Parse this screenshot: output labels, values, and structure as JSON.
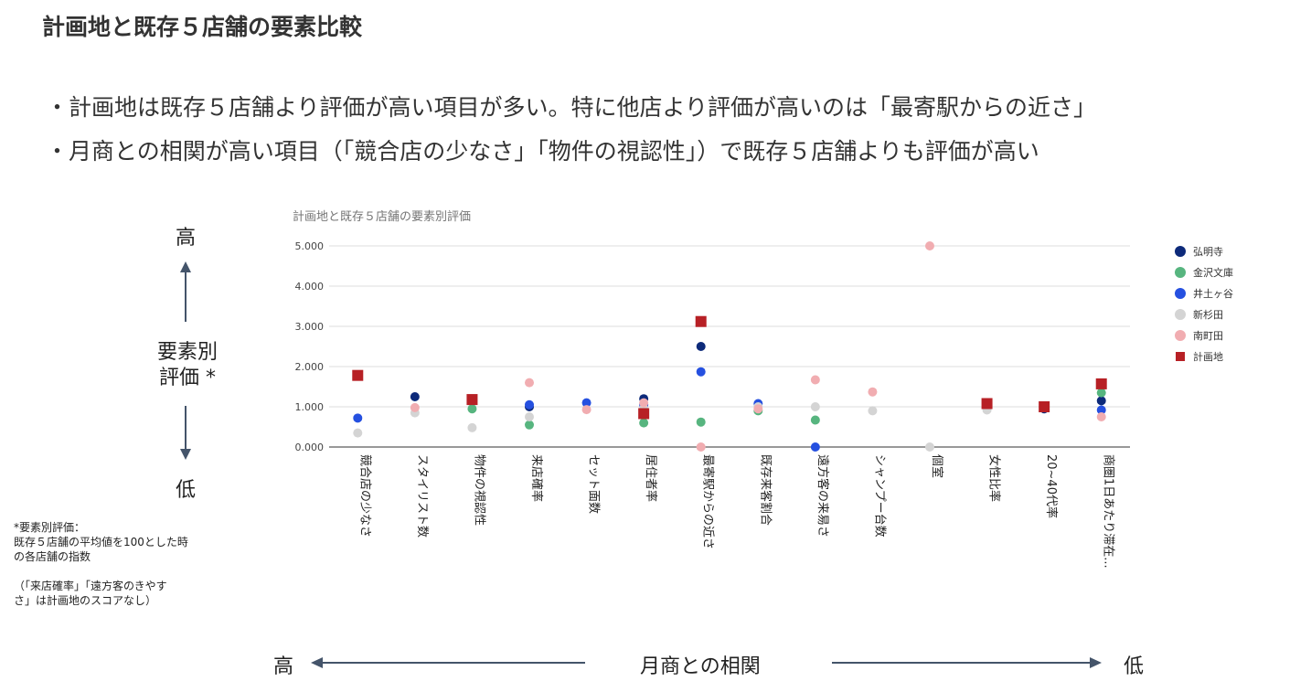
{
  "title": "計画地と既存５店舗の要素比較",
  "bullets": [
    "・計画地は既存５店舗より評価が高い項目が多い。特に他店より評価が高いのは「最寄駅からの近さ」",
    "・月商との相関が高い項目（「競合店の少なさ」「物件の視認性」）で既存５店舗よりも評価が高い"
  ],
  "y_annotation": {
    "high": "高",
    "label_line1": "要素別",
    "label_line2": "評価 *",
    "low": "低"
  },
  "note": {
    "line1": "*要素別評価：",
    "line2": "既存５店舗の平均値を100とした時",
    "line3": "の各店舗の指数",
    "line4": "（「来店確率」「遠方客のきやす",
    "line5": "さ」は計画地のスコアなし）"
  },
  "bottom_axis": {
    "high": "高",
    "label": "月商との相関",
    "low": "低"
  },
  "chart_data": {
    "type": "scatter",
    "title": "計画地と既存５店舗の要素別評価",
    "categories": [
      "競合店の少なさ",
      "スタイリスト数",
      "物件の視認性",
      "来店確率",
      "セット面数",
      "居住者率",
      "最寄駅からの近さ",
      "既存来客割合",
      "遠方客の来易さ",
      "シャンプー台数",
      "個室",
      "女性比率",
      "20~40代率",
      "商圏1日あたり滞在..."
    ],
    "y_ticks": [
      "0.000",
      "1.000",
      "2.000",
      "3.000",
      "4.000",
      "5.000"
    ],
    "ylim": [
      0,
      5
    ],
    "grid": true,
    "legend_position": "right",
    "series": [
      {
        "name": "弘明寺",
        "color": "#0d2a7a",
        "marker": "circle",
        "values": [
          null,
          1.25,
          null,
          1.0,
          null,
          1.2,
          2.5,
          null,
          null,
          null,
          null,
          null,
          0.95,
          1.15
        ]
      },
      {
        "name": "金沢文庫",
        "color": "#57b57f",
        "marker": "circle",
        "values": [
          null,
          null,
          0.95,
          0.55,
          null,
          0.6,
          0.62,
          0.9,
          0.67,
          null,
          null,
          null,
          null,
          1.35
        ]
      },
      {
        "name": "井土ヶ谷",
        "color": "#2550e0",
        "marker": "circle",
        "values": [
          0.72,
          null,
          null,
          1.05,
          1.1,
          1.05,
          1.87,
          1.08,
          0.0,
          null,
          null,
          null,
          null,
          0.92
        ]
      },
      {
        "name": "新杉田",
        "color": "#d4d4d4",
        "marker": "circle",
        "values": [
          0.35,
          0.85,
          0.48,
          0.75,
          null,
          0.95,
          null,
          1.0,
          1.0,
          0.9,
          0.0,
          0.92,
          null,
          null
        ]
      },
      {
        "name": "南町田",
        "color": "#f1adb1",
        "marker": "circle",
        "values": [
          null,
          0.98,
          null,
          1.6,
          0.93,
          1.1,
          0.0,
          0.95,
          1.67,
          1.37,
          5.0,
          null,
          null,
          0.75
        ]
      },
      {
        "name": "計画地",
        "color": "#b72025",
        "marker": "square",
        "values": [
          1.78,
          null,
          1.18,
          null,
          null,
          0.83,
          3.12,
          null,
          null,
          null,
          null,
          1.08,
          1.0,
          1.57
        ]
      }
    ]
  }
}
